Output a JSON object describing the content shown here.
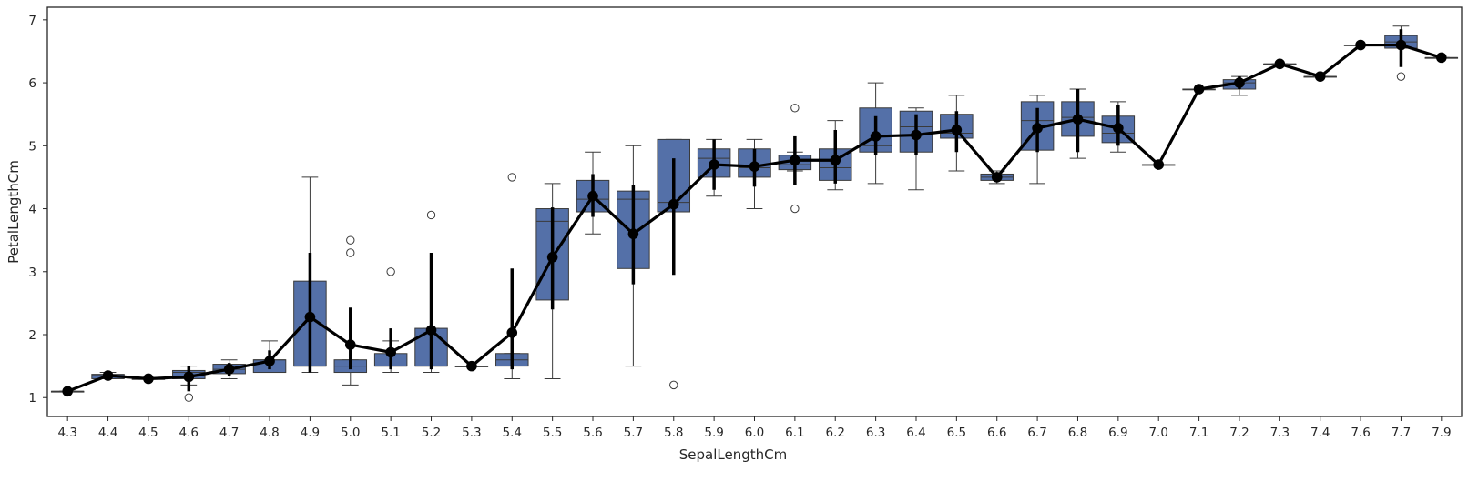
{
  "chart_data": {
    "type": "box+pointplot",
    "xlabel": "SepalLengthCm",
    "ylabel": "PetalLengthCm",
    "ylim": [
      0.7,
      7.2
    ],
    "yticks": [
      1,
      2,
      3,
      4,
      5,
      6,
      7
    ],
    "grid": false,
    "colors": {
      "box": "#5470a8",
      "box_edge": "#3a3a3a",
      "line": "#000000"
    },
    "categories": [
      "4.3",
      "4.4",
      "4.5",
      "4.6",
      "4.7",
      "4.8",
      "4.9",
      "5.0",
      "5.1",
      "5.2",
      "5.3",
      "5.4",
      "5.5",
      "5.6",
      "5.7",
      "5.8",
      "5.9",
      "6.0",
      "6.1",
      "6.2",
      "6.3",
      "6.4",
      "6.5",
      "6.6",
      "6.7",
      "6.8",
      "6.9",
      "7.0",
      "7.1",
      "7.2",
      "7.3",
      "7.4",
      "7.6",
      "7.7",
      "7.9"
    ],
    "boxes": [
      {
        "q1": 1.1,
        "median": 1.1,
        "q3": 1.1,
        "wlo": 1.1,
        "whi": 1.1,
        "fliers": []
      },
      {
        "q1": 1.3,
        "median": 1.35,
        "q3": 1.37,
        "wlo": 1.3,
        "whi": 1.4,
        "fliers": []
      },
      {
        "q1": 1.3,
        "median": 1.3,
        "q3": 1.3,
        "wlo": 1.3,
        "whi": 1.3,
        "fliers": []
      },
      {
        "q1": 1.3,
        "median": 1.4,
        "q3": 1.43,
        "wlo": 1.2,
        "whi": 1.5,
        "fliers": [
          1.0
        ]
      },
      {
        "q1": 1.38,
        "median": 1.45,
        "q3": 1.53,
        "wlo": 1.3,
        "whi": 1.6,
        "fliers": []
      },
      {
        "q1": 1.4,
        "median": 1.6,
        "q3": 1.6,
        "wlo": 1.4,
        "whi": 1.9,
        "fliers": []
      },
      {
        "q1": 1.5,
        "median": 1.5,
        "q3": 2.85,
        "wlo": 1.4,
        "whi": 4.5,
        "fliers": []
      },
      {
        "q1": 1.4,
        "median": 1.5,
        "q3": 1.6,
        "wlo": 1.2,
        "whi": 1.6,
        "fliers": [
          3.3,
          3.5
        ]
      },
      {
        "q1": 1.5,
        "median": 1.5,
        "q3": 1.7,
        "wlo": 1.4,
        "whi": 1.9,
        "fliers": [
          3.0
        ]
      },
      {
        "q1": 1.5,
        "median": 1.5,
        "q3": 2.1,
        "wlo": 1.4,
        "whi": 2.1,
        "fliers": [
          3.9
        ]
      },
      {
        "q1": 1.5,
        "median": 1.5,
        "q3": 1.5,
        "wlo": 1.5,
        "whi": 1.5,
        "fliers": []
      },
      {
        "q1": 1.5,
        "median": 1.6,
        "q3": 1.7,
        "wlo": 1.3,
        "whi": 1.7,
        "fliers": [
          4.5
        ]
      },
      {
        "q1": 2.55,
        "median": 3.8,
        "q3": 4.0,
        "wlo": 1.3,
        "whi": 4.4,
        "fliers": []
      },
      {
        "q1": 3.95,
        "median": 4.15,
        "q3": 4.45,
        "wlo": 3.6,
        "whi": 4.9,
        "fliers": []
      },
      {
        "q1": 3.05,
        "median": 4.15,
        "q3": 4.28,
        "wlo": 1.5,
        "whi": 5.0,
        "fliers": []
      },
      {
        "q1": 3.95,
        "median": 4.1,
        "q3": 5.1,
        "wlo": 3.9,
        "whi": 5.1,
        "fliers": [
          1.2
        ]
      },
      {
        "q1": 4.5,
        "median": 4.8,
        "q3": 4.95,
        "wlo": 4.2,
        "whi": 5.1,
        "fliers": []
      },
      {
        "q1": 4.5,
        "median": 4.65,
        "q3": 4.95,
        "wlo": 4.0,
        "whi": 5.1,
        "fliers": []
      },
      {
        "q1": 4.62,
        "median": 4.7,
        "q3": 4.85,
        "wlo": 4.6,
        "whi": 4.9,
        "fliers": [
          4.0,
          5.6
        ]
      },
      {
        "q1": 4.45,
        "median": 4.65,
        "q3": 4.95,
        "wlo": 4.3,
        "whi": 5.4,
        "fliers": []
      },
      {
        "q1": 4.9,
        "median": 5.0,
        "q3": 5.6,
        "wlo": 4.4,
        "whi": 6.0,
        "fliers": []
      },
      {
        "q1": 4.9,
        "median": 5.3,
        "q3": 5.55,
        "wlo": 4.3,
        "whi": 5.6,
        "fliers": []
      },
      {
        "q1": 5.12,
        "median": 5.2,
        "q3": 5.5,
        "wlo": 4.6,
        "whi": 5.8,
        "fliers": []
      },
      {
        "q1": 4.45,
        "median": 4.5,
        "q3": 4.55,
        "wlo": 4.4,
        "whi": 4.6,
        "fliers": []
      },
      {
        "q1": 4.93,
        "median": 5.4,
        "q3": 5.7,
        "wlo": 4.4,
        "whi": 5.8,
        "fliers": []
      },
      {
        "q1": 5.15,
        "median": 5.45,
        "q3": 5.7,
        "wlo": 4.8,
        "whi": 5.9,
        "fliers": []
      },
      {
        "q1": 5.05,
        "median": 5.2,
        "q3": 5.47,
        "wlo": 4.9,
        "whi": 5.7,
        "fliers": []
      },
      {
        "q1": 4.7,
        "median": 4.7,
        "q3": 4.7,
        "wlo": 4.7,
        "whi": 4.7,
        "fliers": []
      },
      {
        "q1": 5.9,
        "median": 5.9,
        "q3": 5.9,
        "wlo": 5.9,
        "whi": 5.9,
        "fliers": []
      },
      {
        "q1": 5.9,
        "median": 6.0,
        "q3": 6.05,
        "wlo": 5.8,
        "whi": 6.1,
        "fliers": []
      },
      {
        "q1": 6.3,
        "median": 6.3,
        "q3": 6.3,
        "wlo": 6.3,
        "whi": 6.3,
        "fliers": []
      },
      {
        "q1": 6.1,
        "median": 6.1,
        "q3": 6.1,
        "wlo": 6.1,
        "whi": 6.1,
        "fliers": []
      },
      {
        "q1": 6.6,
        "median": 6.6,
        "q3": 6.6,
        "wlo": 6.6,
        "whi": 6.6,
        "fliers": []
      },
      {
        "q1": 6.55,
        "median": 6.65,
        "q3": 6.75,
        "wlo": 6.55,
        "whi": 6.9,
        "fliers": [
          6.1
        ]
      },
      {
        "q1": 6.4,
        "median": 6.4,
        "q3": 6.4,
        "wlo": 6.4,
        "whi": 6.4,
        "fliers": []
      }
    ],
    "means": [
      1.1,
      1.35,
      1.3,
      1.33,
      1.45,
      1.58,
      2.28,
      1.84,
      1.72,
      2.07,
      1.5,
      2.03,
      3.23,
      4.2,
      3.6,
      4.07,
      4.7,
      4.67,
      4.77,
      4.77,
      5.15,
      5.17,
      5.25,
      4.5,
      5.28,
      5.42,
      5.28,
      4.7,
      5.9,
      6.0,
      6.3,
      6.1,
      6.6,
      6.6,
      6.4
    ],
    "ci": [
      [
        1.1,
        1.1
      ],
      [
        1.3,
        1.4
      ],
      [
        1.3,
        1.3
      ],
      [
        1.1,
        1.5
      ],
      [
        1.35,
        1.55
      ],
      [
        1.45,
        1.75
      ],
      [
        1.4,
        3.3
      ],
      [
        1.45,
        2.43
      ],
      [
        1.45,
        2.1
      ],
      [
        1.45,
        3.3
      ],
      [
        1.5,
        1.5
      ],
      [
        1.45,
        3.05
      ],
      [
        2.4,
        4.02
      ],
      [
        3.87,
        4.55
      ],
      [
        2.8,
        4.38
      ],
      [
        2.95,
        4.8
      ],
      [
        4.3,
        5.1
      ],
      [
        4.35,
        4.95
      ],
      [
        4.37,
        5.15
      ],
      [
        4.4,
        5.25
      ],
      [
        4.85,
        5.47
      ],
      [
        4.85,
        5.5
      ],
      [
        4.9,
        5.55
      ],
      [
        4.5,
        4.5
      ],
      [
        4.9,
        5.6
      ],
      [
        4.9,
        5.9
      ],
      [
        5.0,
        5.65
      ],
      [
        4.7,
        4.7
      ],
      [
        5.9,
        5.9
      ],
      [
        5.9,
        6.1
      ],
      [
        6.3,
        6.3
      ],
      [
        6.1,
        6.1
      ],
      [
        6.6,
        6.6
      ],
      [
        6.25,
        6.85
      ],
      [
        6.4,
        6.4
      ]
    ]
  }
}
